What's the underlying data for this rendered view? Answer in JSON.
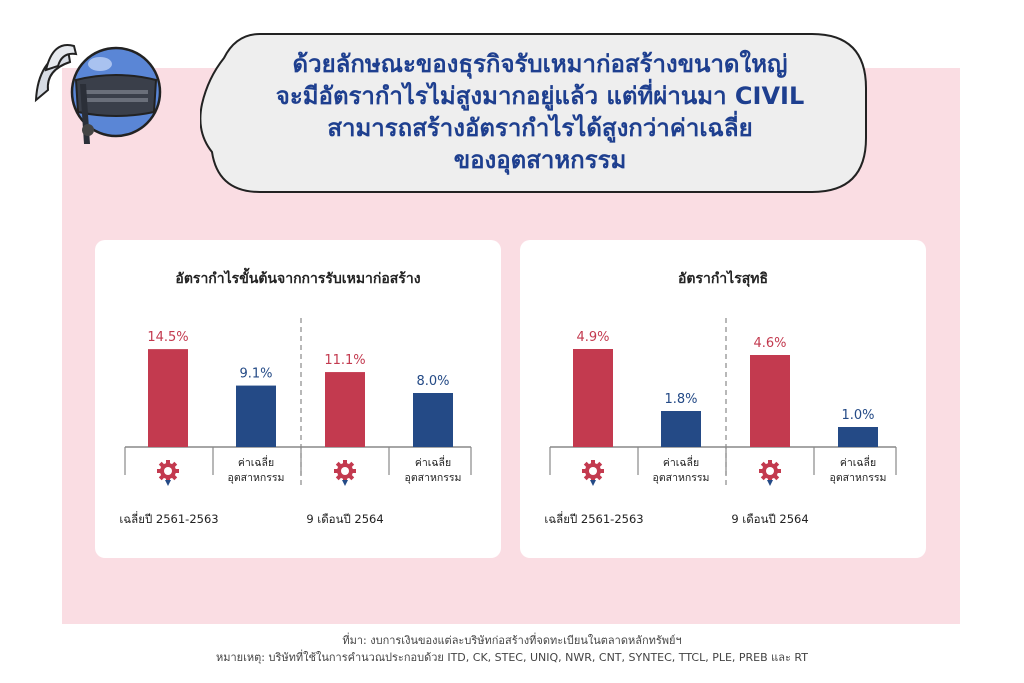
{
  "headline": {
    "lines": [
      "ด้วยลักษณะของธุรกิจรับเหมาก่อสร้างขนาดใหญ่",
      "จะมีอัตรากำไรไม่สูงมากอยู่แล้ว แต่ที่ผ่านมา CIVIL",
      "สามารถสร้างอัตรากำไรได้สูงกว่าค่าเฉลี่ย",
      "ของอุตสาหกรรม"
    ]
  },
  "icons": {
    "mascot": "knight-helmet-icon",
    "company": "civil-gear-logo-icon"
  },
  "colors": {
    "company": "#c33a4f",
    "industry": "#244a86",
    "headline": "#1e3f8f",
    "background": "#fadde3"
  },
  "chart_data": [
    {
      "type": "bar",
      "title": "อัตรากำไรขั้นต้นจากการรับเหมาก่อสร้าง",
      "categories": [
        "",
        "ค่าเฉลี่ย\nอุตสาหกรรม",
        "",
        "ค่าเฉลี่ย\nอุตสาหกรรม"
      ],
      "groups": [
        "เฉลี่ยปี 2561-2563",
        "9 เดือนปี 2564"
      ],
      "values": [
        14.5,
        9.1,
        11.1,
        8.0
      ],
      "labels": [
        "14.5%",
        "9.1%",
        "11.1%",
        "8.0%"
      ],
      "ylim": [
        0,
        16
      ]
    },
    {
      "type": "bar",
      "title": "อัตรากำไรสุทธิ",
      "categories": [
        "",
        "ค่าเฉลี่ย\nอุตสาหกรรม",
        "",
        "ค่าเฉลี่ย\nอุตสาหกรรม"
      ],
      "groups": [
        "เฉลี่ยปี 2561-2563",
        "9 เดือนปี 2564"
      ],
      "values": [
        4.9,
        1.8,
        4.6,
        1.0
      ],
      "labels": [
        "4.9%",
        "1.8%",
        "4.6%",
        "1.0%"
      ],
      "ylim": [
        0,
        5.4
      ]
    }
  ],
  "footer": {
    "source": "ที่มา: งบการเงินของแต่ละบริษัทก่อสร้างที่จดทะเบียนในตลาดหลักทรัพย์ฯ",
    "note": "หมายเหตุ: บริษัทที่ใช้ในการคำนวณประกอบด้วย ITD, CK, STEC, UNIQ, NWR, CNT, SYNTEC, TTCL, PLE, PREB และ RT"
  }
}
